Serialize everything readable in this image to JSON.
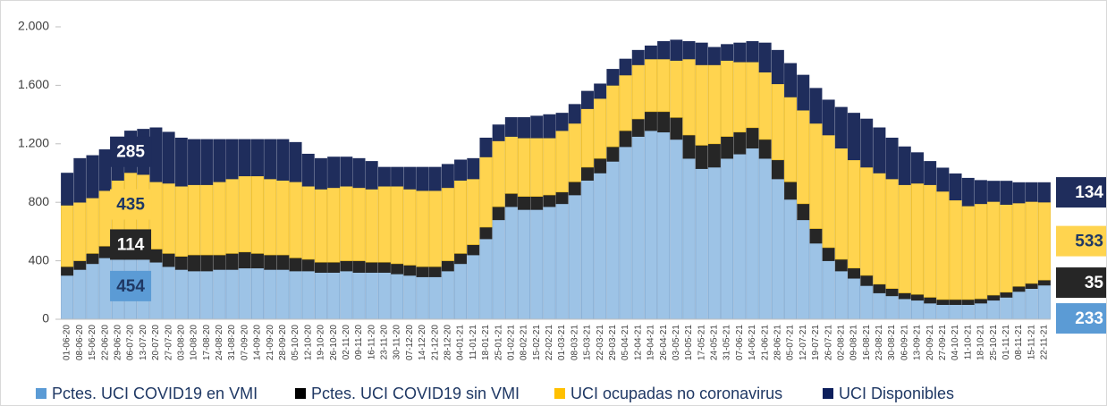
{
  "chart_data": {
    "type": "stacked-bar",
    "categories": [
      "01-06-20",
      "08-06-20",
      "15-06-20",
      "22-06-20",
      "29-06-20",
      "06-07-20",
      "13-07-20",
      "20-07-20",
      "27-07-20",
      "03-08-20",
      "10-08-20",
      "17-08-20",
      "24-08-20",
      "31-08-20",
      "07-09-20",
      "14-09-20",
      "21-09-20",
      "28-09-20",
      "05-10-20",
      "12-10-20",
      "19-10-20",
      "26-10-20",
      "02-11-20",
      "09-11-20",
      "16-11-20",
      "23-11-20",
      "30-11-20",
      "07-12-20",
      "14-12-20",
      "21-12-20",
      "28-12-20",
      "04-01-21",
      "11-01-21",
      "18-01-21",
      "25-01-21",
      "01-02-21",
      "08-02-21",
      "15-02-21",
      "22-02-21",
      "01-03-21",
      "08-03-21",
      "15-03-21",
      "22-03-21",
      "29-03-21",
      "05-04-21",
      "12-04-21",
      "19-04-21",
      "26-04-21",
      "03-05-21",
      "10-05-21",
      "17-05-21",
      "24-05-21",
      "31-05-21",
      "07-06-21",
      "14-06-21",
      "21-06-21",
      "28-06-21",
      "05-07-21",
      "12-07-21",
      "19-07-21",
      "26-07-21",
      "02-08-21",
      "09-08-21",
      "16-08-21",
      "23-08-21",
      "30-08-21",
      "06-09-21",
      "13-09-21",
      "20-09-21",
      "27-09-21",
      "04-10-21",
      "11-10-21",
      "18-10-21",
      "25-10-21",
      "01-11-21",
      "08-11-21",
      "15-11-21",
      "22-11-21"
    ],
    "series": [
      {
        "name": "Pctes. UCI COVID19 en VMI",
        "color": "#9dc3e6",
        "label_color": "#1f3864",
        "values": [
          300,
          340,
          380,
          420,
          450,
          454,
          430,
          390,
          360,
          340,
          330,
          330,
          340,
          340,
          350,
          350,
          340,
          340,
          330,
          330,
          320,
          320,
          330,
          320,
          320,
          320,
          310,
          300,
          290,
          290,
          330,
          380,
          440,
          550,
          680,
          770,
          750,
          750,
          770,
          790,
          850,
          950,
          1000,
          1080,
          1180,
          1250,
          1290,
          1280,
          1230,
          1100,
          1030,
          1040,
          1100,
          1130,
          1170,
          1100,
          960,
          820,
          680,
          520,
          400,
          330,
          280,
          230,
          180,
          160,
          140,
          130,
          110,
          100,
          100,
          100,
          110,
          130,
          150,
          190,
          210,
          233
        ],
        "value_labels": [
          null,
          null,
          null,
          null,
          null,
          "454",
          null,
          null,
          null,
          null,
          null,
          null,
          null,
          null,
          null,
          null,
          null,
          null,
          null,
          null,
          null,
          null,
          null,
          null,
          null,
          null,
          null,
          null,
          null,
          null,
          null,
          null,
          null,
          null,
          null,
          null,
          null,
          null,
          null,
          null,
          null,
          null,
          null,
          null,
          null,
          null,
          null,
          null,
          null,
          null,
          null,
          null,
          null,
          null,
          null,
          null,
          null,
          null,
          null,
          null,
          null,
          null,
          null,
          null,
          null,
          null,
          null,
          null,
          null,
          null,
          null,
          null,
          null,
          null,
          null,
          null,
          null,
          "233"
        ]
      },
      {
        "name": "Pctes. UCI COVID19 sin VMI",
        "color": "#262626",
        "label_color": "#ffffff",
        "values": [
          60,
          60,
          70,
          80,
          100,
          114,
          100,
          90,
          90,
          90,
          110,
          110,
          100,
          110,
          110,
          100,
          100,
          100,
          90,
          80,
          70,
          70,
          70,
          80,
          70,
          70,
          70,
          70,
          70,
          70,
          70,
          70,
          70,
          80,
          90,
          90,
          90,
          90,
          80,
          80,
          90,
          90,
          100,
          100,
          110,
          120,
          130,
          140,
          150,
          160,
          160,
          160,
          150,
          150,
          140,
          130,
          130,
          120,
          110,
          100,
          90,
          80,
          70,
          70,
          60,
          50,
          40,
          40,
          40,
          35,
          35,
          35,
          30,
          35,
          35,
          35,
          35,
          35
        ],
        "value_labels": [
          null,
          null,
          null,
          null,
          null,
          "114",
          null,
          null,
          null,
          null,
          null,
          null,
          null,
          null,
          null,
          null,
          null,
          null,
          null,
          null,
          null,
          null,
          null,
          null,
          null,
          null,
          null,
          null,
          null,
          null,
          null,
          null,
          null,
          null,
          null,
          null,
          null,
          null,
          null,
          null,
          null,
          null,
          null,
          null,
          null,
          null,
          null,
          null,
          null,
          null,
          null,
          null,
          null,
          null,
          null,
          null,
          null,
          null,
          null,
          null,
          null,
          null,
          null,
          null,
          null,
          null,
          null,
          null,
          null,
          null,
          null,
          null,
          null,
          null,
          null,
          null,
          null,
          "35"
        ]
      },
      {
        "name": "UCI ocupadas no coronavirus",
        "color": "#ffd44f",
        "label_color": "#1f3864",
        "values": [
          420,
          400,
          380,
          380,
          400,
          435,
          460,
          460,
          480,
          480,
          480,
          480,
          500,
          510,
          520,
          530,
          520,
          510,
          520,
          500,
          500,
          510,
          510,
          500,
          500,
          520,
          530,
          520,
          520,
          520,
          500,
          500,
          450,
          480,
          450,
          390,
          400,
          400,
          390,
          420,
          400,
          400,
          410,
          420,
          380,
          370,
          360,
          360,
          390,
          520,
          550,
          540,
          520,
          480,
          450,
          460,
          520,
          580,
          640,
          720,
          770,
          760,
          740,
          740,
          760,
          750,
          740,
          760,
          770,
          740,
          680,
          640,
          650,
          640,
          600,
          570,
          560,
          533
        ],
        "value_labels": [
          null,
          null,
          null,
          null,
          null,
          "435",
          null,
          null,
          null,
          null,
          null,
          null,
          null,
          null,
          null,
          null,
          null,
          null,
          null,
          null,
          null,
          null,
          null,
          null,
          null,
          null,
          null,
          null,
          null,
          null,
          null,
          null,
          null,
          null,
          null,
          null,
          null,
          null,
          null,
          null,
          null,
          null,
          null,
          null,
          null,
          null,
          null,
          null,
          null,
          null,
          null,
          null,
          null,
          null,
          null,
          null,
          null,
          null,
          null,
          null,
          null,
          null,
          null,
          null,
          null,
          null,
          null,
          null,
          null,
          null,
          null,
          null,
          null,
          null,
          null,
          null,
          null,
          "533"
        ]
      },
      {
        "name": "UCI Disponibles",
        "color": "#1f2d5c",
        "label_color": "#ffffff",
        "values": [
          220,
          300,
          290,
          280,
          250,
          285,
          310,
          370,
          350,
          330,
          310,
          310,
          290,
          270,
          250,
          250,
          270,
          280,
          270,
          220,
          210,
          210,
          200,
          200,
          190,
          130,
          130,
          150,
          160,
          160,
          160,
          140,
          140,
          130,
          110,
          130,
          140,
          150,
          160,
          120,
          130,
          120,
          100,
          110,
          110,
          100,
          90,
          120,
          140,
          120,
          150,
          120,
          110,
          130,
          140,
          200,
          230,
          230,
          240,
          240,
          240,
          280,
          320,
          330,
          310,
          280,
          260,
          210,
          160,
          160,
          180,
          190,
          160,
          140,
          160,
          140,
          130,
          134
        ],
        "value_labels": [
          null,
          null,
          null,
          null,
          null,
          "285",
          null,
          null,
          null,
          null,
          null,
          null,
          null,
          null,
          null,
          null,
          null,
          null,
          null,
          null,
          null,
          null,
          null,
          null,
          null,
          null,
          null,
          null,
          null,
          null,
          null,
          null,
          null,
          null,
          null,
          null,
          null,
          null,
          null,
          null,
          null,
          null,
          null,
          null,
          null,
          null,
          null,
          null,
          null,
          null,
          null,
          null,
          null,
          null,
          null,
          null,
          null,
          null,
          null,
          null,
          null,
          null,
          null,
          null,
          null,
          null,
          null,
          null,
          null,
          null,
          null,
          null,
          null,
          null,
          null,
          null,
          null,
          "134"
        ]
      }
    ],
    "ylim": [
      0,
      2000
    ],
    "yticks": [
      0,
      400,
      800,
      {
        "value": 1200,
        "label": "1.200"
      },
      {
        "value": 1600,
        "label": "1.600"
      },
      {
        "value": 2000,
        "label": "2.000"
      }
    ],
    "grid": false,
    "legend": "bottom"
  }
}
